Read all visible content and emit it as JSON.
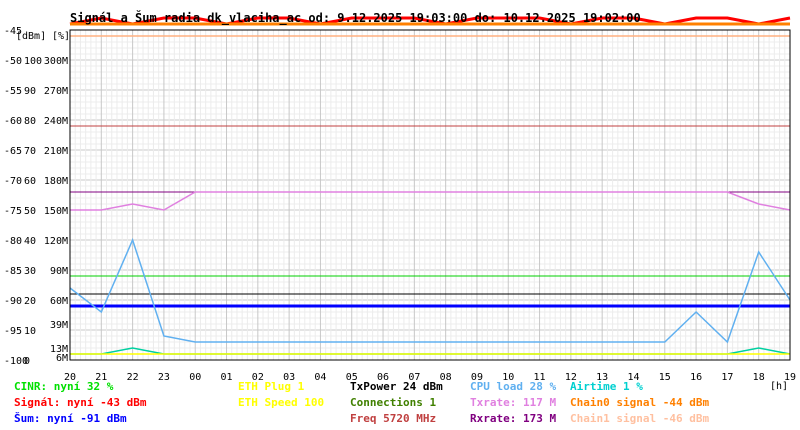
{
  "chart_data": {
    "type": "line",
    "title": "Signál a Šum radia dk_vlaciha_ac od: 9.12.2025 19:03:00 do: 10.12.2025 19:02:00",
    "y_unit_labels": [
      "[dBm]",
      "[%]"
    ],
    "y_ticks_dbm": [
      "-45",
      "-50",
      "-55",
      "-60",
      "-65",
      "-70",
      "-75",
      "-80",
      "-85",
      "-90",
      "-95",
      "-100"
    ],
    "y_ticks_pct": [
      "100",
      "90",
      "80",
      "70",
      "60",
      "50",
      "40",
      "30",
      "20",
      "10",
      "0"
    ],
    "y_ticks_rate": [
      "300M",
      "270M",
      "240M",
      "210M",
      "180M",
      "150M",
      "120M",
      "90M",
      "60M",
      "39M",
      "13M",
      "6M"
    ],
    "x_ticks": [
      "20",
      "21",
      "22",
      "23",
      "00",
      "01",
      "02",
      "03",
      "04",
      "05",
      "06",
      "07",
      "08",
      "09",
      "10",
      "11",
      "12",
      "13",
      "14",
      "15",
      "16",
      "17",
      "18",
      "19"
    ],
    "x_unit": "[h]",
    "ylim_dbm": [
      -100,
      -45
    ],
    "grid": true,
    "series": [
      {
        "name": "Signál",
        "color": "#ff0000",
        "values": [
          -44,
          -43,
          -44,
          -43,
          -43,
          -44,
          -43,
          -43,
          -44,
          -43,
          -43,
          -43,
          -44,
          -43,
          -43,
          -43,
          -44,
          -43,
          -43,
          -44,
          -43,
          -43,
          -44,
          -43
        ]
      },
      {
        "name": "Šum",
        "color": "#0000ff",
        "values": [
          -91,
          -91,
          -91,
          -91,
          -91,
          -91,
          -91,
          -91,
          -91,
          -91,
          -91,
          -91,
          -91,
          -91,
          -91,
          -91,
          -91,
          -91,
          -91,
          -91,
          -91,
          -91,
          -91,
          -91
        ]
      },
      {
        "name": "Chain0",
        "color": "#ff8000",
        "values": [
          -44,
          -44,
          -44,
          -44,
          -44,
          -44,
          -44,
          -44,
          -44,
          -44,
          -44,
          -44,
          -44,
          -44,
          -44,
          -44,
          -44,
          -44,
          -44,
          -44,
          -44,
          -44,
          -44,
          -44
        ]
      },
      {
        "name": "Chain1",
        "color": "#ffb080",
        "values": [
          -46,
          -46,
          -46,
          -46,
          -46,
          -46,
          -46,
          -46,
          -46,
          -46,
          -46,
          -46,
          -46,
          -46,
          -46,
          -46,
          -46,
          -46,
          -46,
          -46,
          -46,
          -46,
          -46,
          -46
        ]
      },
      {
        "name": "CINR",
        "color": "#00d0a0",
        "values": [
          -99,
          -99,
          -98,
          -99,
          -99,
          -99,
          -99,
          -99,
          -99,
          -99,
          -99,
          -99,
          -99,
          -99,
          -99,
          -99,
          -99,
          -99,
          -99,
          -99,
          -99,
          -99,
          -98,
          -99
        ]
      },
      {
        "name": "Connections",
        "color": "#00d000",
        "values": [
          -86,
          -86,
          -86,
          -86,
          -86,
          -86,
          -86,
          -86,
          -86,
          -86,
          -86,
          -86,
          -86,
          -86,
          -86,
          -86,
          -86,
          -86,
          -86,
          -86,
          -86,
          -86,
          -86,
          -86
        ]
      },
      {
        "name": "TxPower",
        "color": "#000000",
        "values": [
          -89,
          -89,
          -89,
          -89,
          -89,
          -89,
          -89,
          -89,
          -89,
          -89,
          -89,
          -89,
          -89,
          -89,
          -89,
          -89,
          -89,
          -89,
          -89,
          -89,
          -89,
          -89,
          -89,
          -89
        ]
      },
      {
        "name": "Rxrate",
        "color": "#800080",
        "values": [
          -72,
          -72,
          -72,
          -72,
          -72,
          -72,
          -72,
          -72,
          -72,
          -72,
          -72,
          -72,
          -72,
          -72,
          -72,
          -72,
          -72,
          -72,
          -72,
          -72,
          -72,
          -72,
          -72,
          -72
        ]
      },
      {
        "name": "Txrate",
        "color": "#e080e0",
        "values": [
          -75,
          -75,
          -74,
          -75,
          -72,
          -72,
          -72,
          -72,
          -72,
          -72,
          -72,
          -72,
          -72,
          -72,
          -72,
          -72,
          -72,
          -72,
          -72,
          -72,
          -72,
          -72,
          -74,
          -75
        ]
      },
      {
        "name": "Freq",
        "color": "#c04040",
        "values": [
          -61,
          -61,
          -61,
          -61,
          -61,
          -61,
          -61,
          -61,
          -61,
          -61,
          -61,
          -61,
          -61,
          -61,
          -61,
          -61,
          -61,
          -61,
          -61,
          -61,
          -61,
          -61,
          -61,
          -61
        ]
      },
      {
        "name": "CPU",
        "color": "#60b0f0",
        "values": [
          -88,
          -92,
          -80,
          -96,
          -97,
          -97,
          -97,
          -97,
          -97,
          -97,
          -97,
          -97,
          -97,
          -97,
          -97,
          -97,
          -97,
          -97,
          -97,
          -97,
          -92,
          -97,
          -82,
          -90
        ]
      },
      {
        "name": "ETH Plug",
        "color": "#ffff00",
        "values": [
          -99,
          -99,
          -99,
          -99,
          -99,
          -99,
          -99,
          -99,
          -99,
          -99,
          -99,
          -99,
          -99,
          -99,
          -99,
          -99,
          -99,
          -99,
          -99,
          -99,
          -99,
          -99,
          -99,
          -99
        ]
      }
    ],
    "legend": [
      {
        "text": "CINR: nyní 32 %",
        "color": "#00e000"
      },
      {
        "text": "Signál: nyní -43 dBm",
        "color": "#ff0000"
      },
      {
        "text": "Šum: nyní -91 dBm",
        "color": "#0000ff"
      },
      {
        "text": "ETH Plug 1",
        "color": "#ffff00"
      },
      {
        "text": "ETH Speed 100",
        "color": "#ffff00"
      },
      {
        "text": "TxPower 24 dBm",
        "color": "#000000"
      },
      {
        "text": "Connections 1",
        "color": "#408000"
      },
      {
        "text": "Freq 5720 MHz",
        "color": "#c04040"
      },
      {
        "text": "CPU load 28 %",
        "color": "#60b0f0"
      },
      {
        "text": "Txrate: 117 M",
        "color": "#e080e0"
      },
      {
        "text": "Rxrate: 173 M",
        "color": "#800080"
      },
      {
        "text": "Airtime 1 %",
        "color": "#00d0d0"
      },
      {
        "text": "Chain0 signal -44 dBm",
        "color": "#ff8000"
      },
      {
        "text": "Chain1 signal -46 dBm",
        "color": "#ffc0a0"
      }
    ]
  }
}
